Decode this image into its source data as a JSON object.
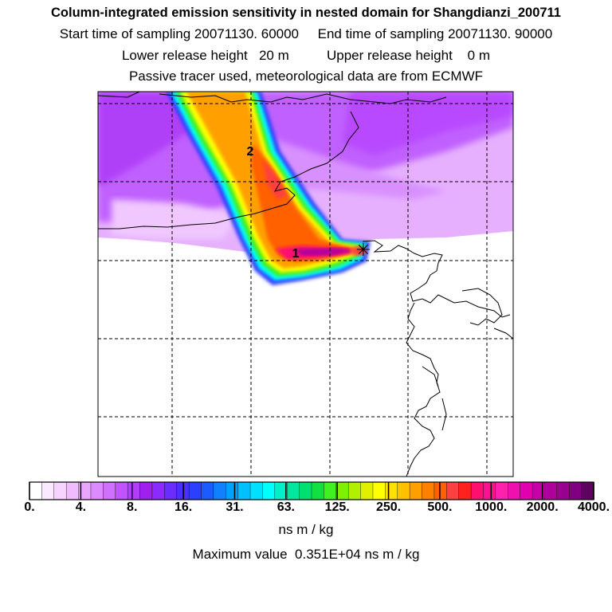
{
  "header": {
    "title": "Column-integrated emission sensitivity in nested domain for Shangdianzi_200711",
    "sampling_line": "Start time of sampling 20071130. 60000     End time of sampling 20071130. 90000",
    "release_line": "Lower release height   20 m          Upper release height    0 m",
    "tracer_line": "Passive tracer used, meteorological data are from ECMWF"
  },
  "map": {
    "markers": [
      {
        "label": "1"
      },
      {
        "label": "2"
      }
    ],
    "receptor_symbol": "✳"
  },
  "colorbar": {
    "tick_labels": [
      "0.",
      "4.",
      "8.",
      "16.",
      "31.",
      "63.",
      "125.",
      "250.",
      "500.",
      "1000.",
      "2000.",
      "4000."
    ],
    "colors": [
      "#ffffff",
      "#fbeaff",
      "#f6d4ff",
      "#f0bcff",
      "#eaa6ff",
      "#de8aff",
      "#d070ff",
      "#c055ff",
      "#b23cff",
      "#a020f0",
      "#8a2cff",
      "#6a2cff",
      "#4a30ff",
      "#2a40ff",
      "#1a5cff",
      "#1080ff",
      "#00a0ff",
      "#00c0ff",
      "#00e0ff",
      "#00ffff",
      "#00f0c8",
      "#00e8a0",
      "#00e070",
      "#10e040",
      "#40f020",
      "#80f000",
      "#b0f000",
      "#e0f000",
      "#ffff00",
      "#ffe000",
      "#ffc000",
      "#ffa000",
      "#ff8000",
      "#ff6000",
      "#ff4040",
      "#ff2020",
      "#ff1070",
      "#ff1090",
      "#ff20b0",
      "#f010b0",
      "#e000b0",
      "#c800a8",
      "#b0009c",
      "#980090",
      "#800080",
      "#600060"
    ],
    "units": "ns m / kg",
    "max_value_text": "Maximum value  0.351E+04 ns m / kg"
  }
}
